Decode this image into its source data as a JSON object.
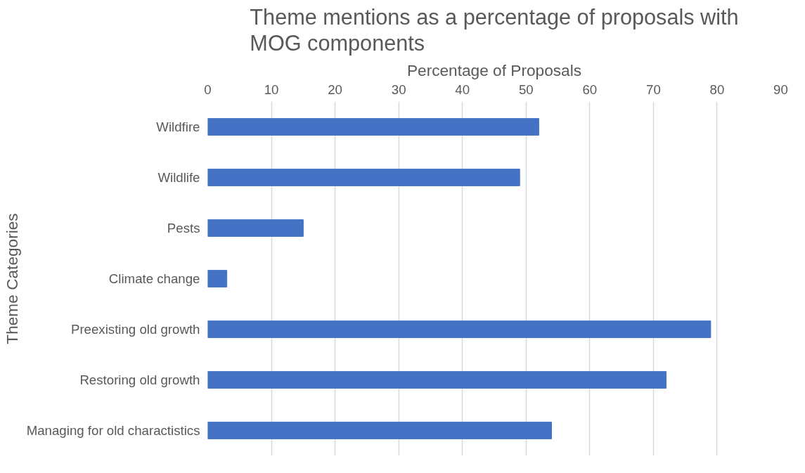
{
  "chart_data": {
    "type": "bar",
    "orientation": "horizontal",
    "title": "Theme mentions as a percentage of proposals with MOG components",
    "xlabel": "Percentage of Proposals",
    "ylabel": "Theme Categories",
    "categories": [
      "Wildfire",
      "Wildlife",
      "Pests",
      "Climate change",
      "Preexisting old growth",
      "Restoring old growth",
      "Managing for old charactistics"
    ],
    "values": [
      52,
      49,
      15,
      3,
      79,
      72,
      54
    ],
    "color": "#4472c4",
    "xlim": [
      0,
      90
    ],
    "xticks": [
      0,
      10,
      20,
      30,
      40,
      50,
      60,
      70,
      80,
      90
    ],
    "grid": "x"
  }
}
